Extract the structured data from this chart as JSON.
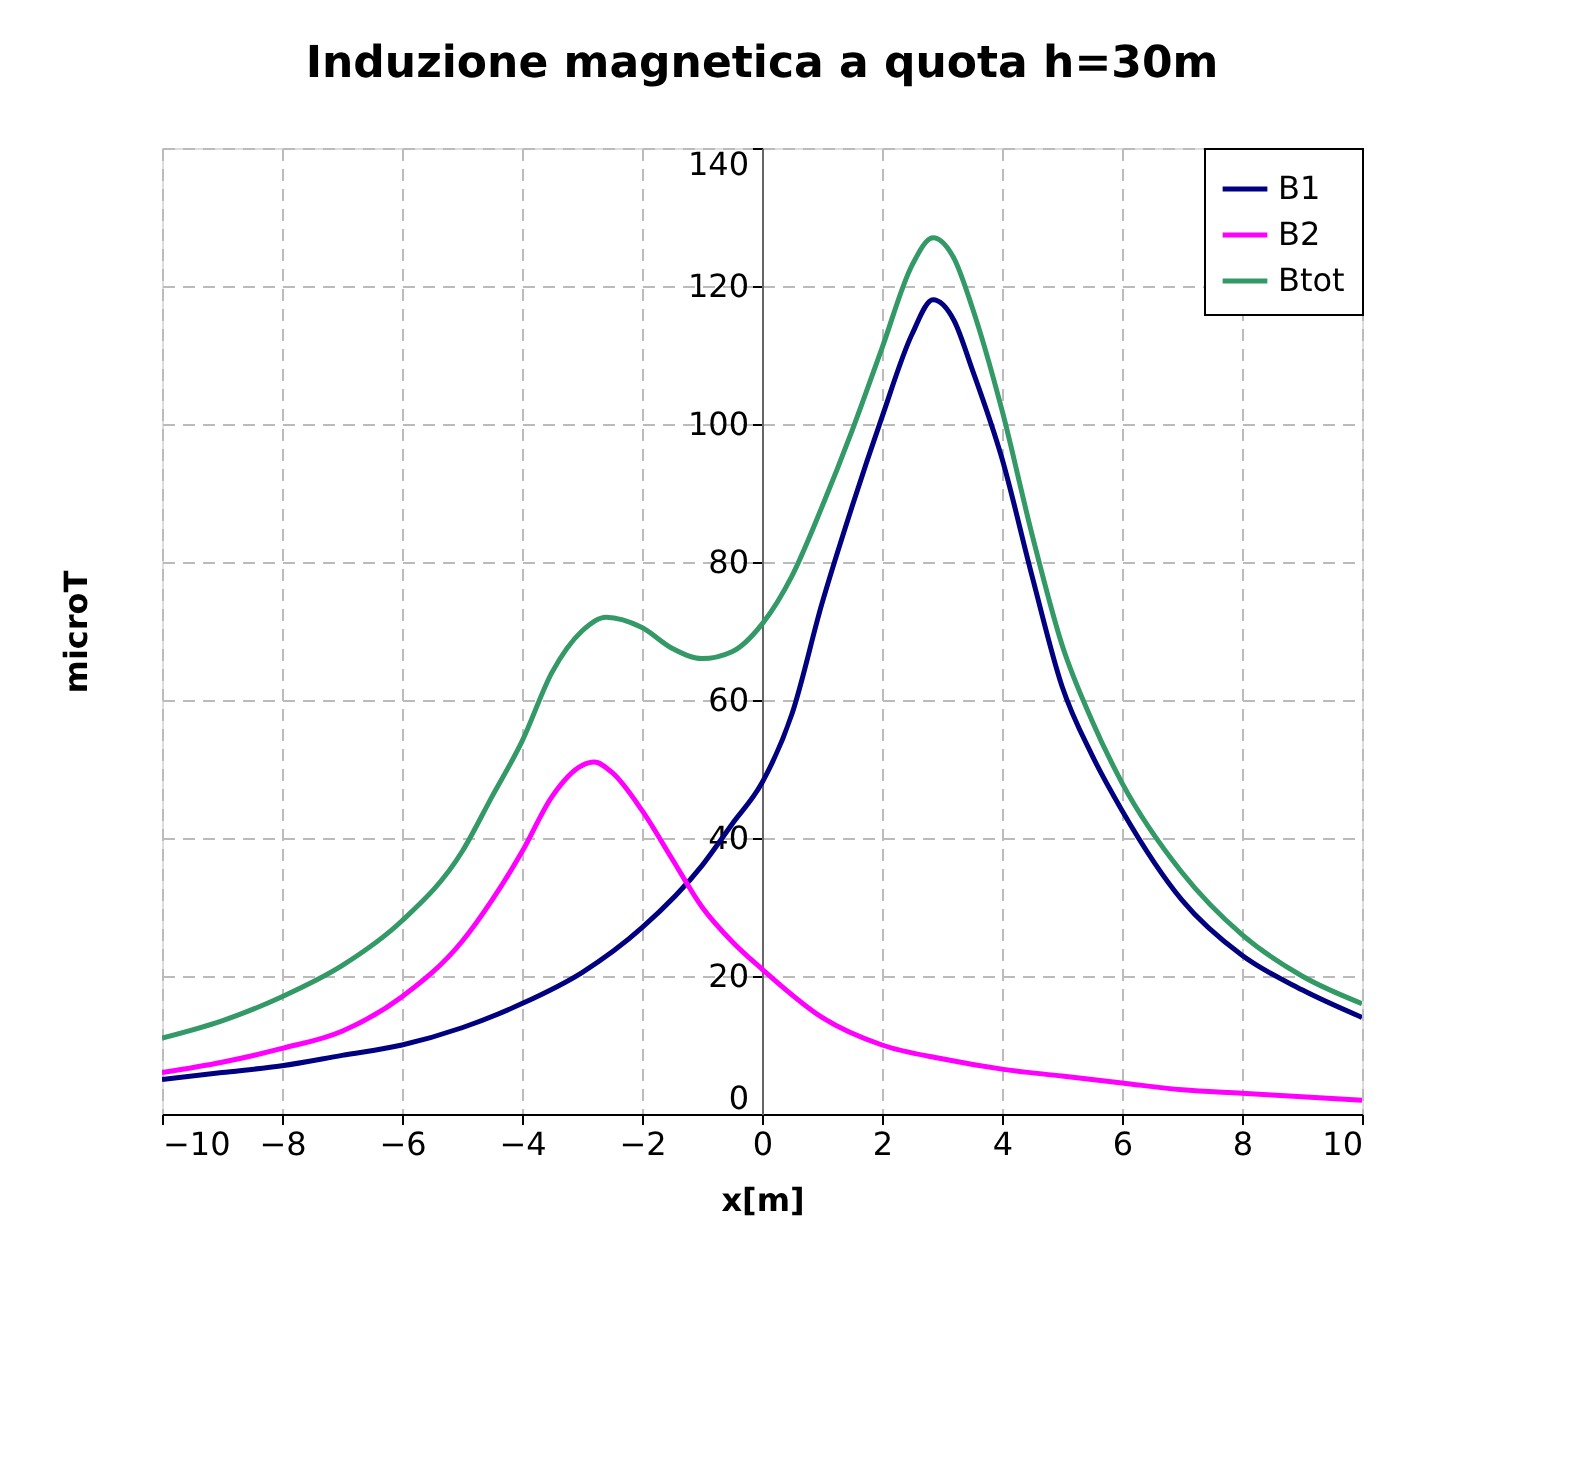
{
  "chart_data": {
    "type": "line",
    "title": "Induzione magnetica a quota h=30m",
    "xlabel": "x[m]",
    "ylabel": "microT",
    "xlim": [
      -10,
      10
    ],
    "xticks": [
      -10,
      -8,
      -6,
      -4,
      -2,
      0,
      2,
      4,
      6,
      8,
      10
    ],
    "ylim": [
      0,
      140
    ],
    "yticks": [
      0,
      20,
      40,
      60,
      80,
      100,
      120,
      140
    ],
    "grid": true,
    "legend": "top right",
    "marker": "none",
    "line_style": "solid",
    "series": [
      {
        "name": "B1",
        "color": "#000080",
        "x": [
          -10,
          -9,
          -8,
          -7,
          -6,
          -5,
          -4,
          -3,
          -2,
          -1,
          -0.5,
          0,
          0.5,
          1,
          1.5,
          2,
          2.5,
          2.85,
          3.2,
          3.5,
          4,
          4.5,
          5,
          5.5,
          6,
          7,
          8,
          9,
          10
        ],
        "values": [
          5,
          6,
          7,
          8.5,
          10,
          12.5,
          16,
          20.5,
          27,
          36,
          42,
          48,
          58,
          74,
          88,
          101,
          113,
          118,
          115,
          108,
          95,
          78,
          62,
          52,
          44,
          31,
          23,
          18,
          14
        ]
      },
      {
        "name": "B2",
        "color": "#ff00ff",
        "x": [
          -10,
          -9,
          -8,
          -7,
          -6,
          -5,
          -4.5,
          -4,
          -3.5,
          -3,
          -2.8,
          -2.5,
          -2,
          -1.5,
          -1,
          -0.5,
          0,
          1,
          2,
          3,
          4,
          5,
          6,
          7,
          8,
          9,
          10
        ],
        "values": [
          6,
          7.5,
          9.5,
          12,
          17,
          25,
          31,
          38,
          46,
          50.5,
          51,
          49.5,
          44,
          37,
          30,
          25,
          21,
          14,
          10,
          8,
          6.5,
          5.5,
          4.5,
          3.5,
          3,
          2.5,
          2
        ]
      },
      {
        "name": "Btot",
        "color": "#339966",
        "x": [
          -10,
          -9,
          -8,
          -7,
          -6,
          -5,
          -4.5,
          -4,
          -3.5,
          -3,
          -2.6,
          -2,
          -1.5,
          -1,
          -0.5,
          0,
          0.5,
          1,
          1.5,
          2,
          2.5,
          2.85,
          3.2,
          3.5,
          4,
          4.5,
          5,
          5.5,
          6,
          7,
          8,
          9,
          10
        ],
        "values": [
          11,
          13.5,
          17,
          21.5,
          28,
          38,
          46,
          54,
          64,
          70,
          72,
          70.5,
          67.5,
          66,
          67,
          71,
          78,
          88,
          99,
          111,
          123,
          127,
          124,
          117,
          102,
          84,
          68,
          57,
          48,
          35,
          26,
          20,
          16
        ]
      }
    ]
  }
}
